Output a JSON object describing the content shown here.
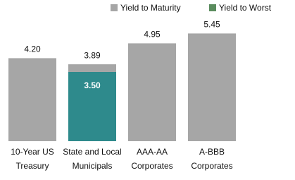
{
  "chart_data": {
    "type": "bar",
    "categories": [
      [
        "10-Year US",
        "Treasury"
      ],
      [
        "State and Local",
        "Municipals"
      ],
      [
        "AAA-AA",
        "Corporates"
      ],
      [
        "A-BBB",
        "Corporates"
      ]
    ],
    "series": [
      {
        "name": "Yield to Maturity",
        "color": "#a6a6a6",
        "legend_color": "#a6a6a6",
        "values": [
          4.2,
          3.89,
          4.95,
          5.45
        ],
        "value_labels": [
          "4.20",
          "3.89",
          "4.95",
          "5.45"
        ]
      },
      {
        "name": "Yield to Worst",
        "color": "#2e8a8c",
        "legend_color": "#5a8c5e",
        "values": [
          null,
          3.5,
          null,
          null
        ],
        "value_labels": [
          null,
          "3.50",
          null,
          null
        ]
      }
    ]
  }
}
